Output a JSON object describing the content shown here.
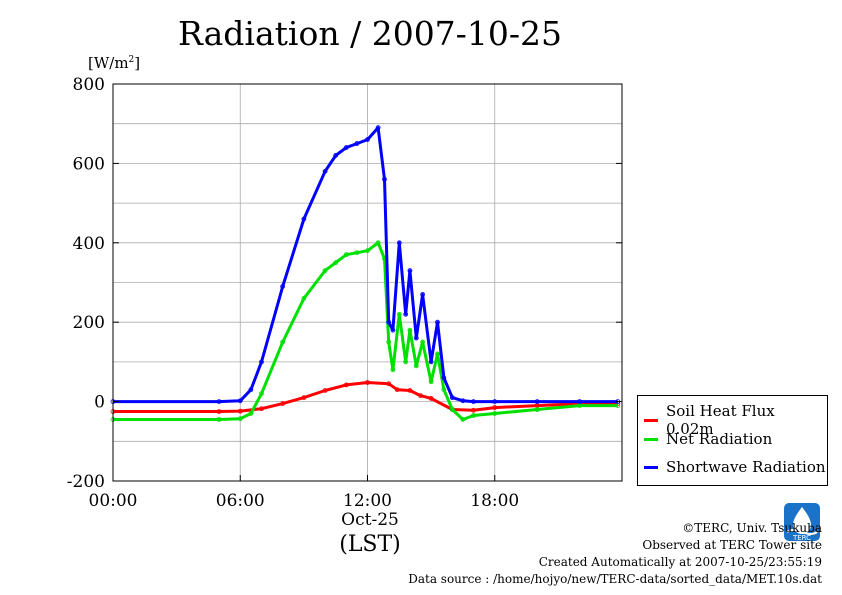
{
  "chart_data": {
    "type": "line",
    "title": "Radiation / 2007-10-25",
    "ylabel": "[W/m2]",
    "xlabel": "(LST)",
    "date_label": "Oct-25",
    "xlim": [
      0,
      24
    ],
    "ylim": [
      -200,
      800
    ],
    "x_ticks": [
      {
        "value": 0,
        "label": "00:00"
      },
      {
        "value": 6,
        "label": "06:00"
      },
      {
        "value": 12,
        "label": "12:00"
      },
      {
        "value": 18,
        "label": "18:00"
      }
    ],
    "y_ticks": [
      -200,
      0,
      200,
      400,
      600,
      800
    ],
    "grid": true,
    "legend_position": "right",
    "series": [
      {
        "name": "Soil Heat Flux 0.02m",
        "color": "#ff0000",
        "x": [
          0,
          5,
          6,
          7,
          8,
          9,
          10,
          11,
          12,
          13,
          13.4,
          14,
          14.5,
          15,
          16,
          17,
          18,
          20,
          22,
          23.8
        ],
        "y": [
          -25,
          -25,
          -24,
          -18,
          -5,
          10,
          28,
          42,
          48,
          45,
          30,
          28,
          15,
          8,
          -20,
          -22,
          -15,
          -10,
          -5,
          -5
        ]
      },
      {
        "name": "Net Radiation",
        "color": "#00e000",
        "x": [
          0,
          5,
          6,
          6.5,
          7,
          8,
          9,
          10,
          10.5,
          11,
          11.5,
          12,
          12.5,
          12.8,
          13,
          13.2,
          13.5,
          13.8,
          14,
          14.3,
          14.6,
          15,
          15.3,
          15.6,
          16,
          16.5,
          17,
          18,
          20,
          22,
          23.8
        ],
        "y": [
          -45,
          -45,
          -43,
          -30,
          20,
          150,
          260,
          330,
          350,
          370,
          375,
          380,
          400,
          360,
          150,
          80,
          220,
          100,
          180,
          90,
          150,
          50,
          120,
          30,
          -20,
          -45,
          -35,
          -30,
          -20,
          -10,
          -10
        ]
      },
      {
        "name": "Shortwave Radiation",
        "color": "#0000ff",
        "x": [
          0,
          5,
          6,
          6.5,
          7,
          8,
          9,
          10,
          10.5,
          11,
          11.5,
          12,
          12.5,
          12.8,
          13,
          13.2,
          13.5,
          13.8,
          14,
          14.3,
          14.6,
          15,
          15.3,
          15.6,
          16,
          16.5,
          17,
          18,
          20,
          22,
          23.8
        ],
        "y": [
          0,
          0,
          2,
          30,
          100,
          290,
          460,
          580,
          620,
          640,
          650,
          660,
          690,
          560,
          200,
          180,
          400,
          220,
          330,
          160,
          270,
          100,
          200,
          60,
          10,
          2,
          0,
          0,
          0,
          0,
          0
        ]
      }
    ]
  },
  "credits": {
    "copyright": "©TERC, Univ. Tsukuba",
    "observed": "Observed at TERC Tower site",
    "created": "Created Automatically at 2007-10-25/23:55:19",
    "source": "Data source : /home/hojyo/new/TERC-data/sorted_data/MET.10s.dat",
    "logo_text": "TERC"
  }
}
